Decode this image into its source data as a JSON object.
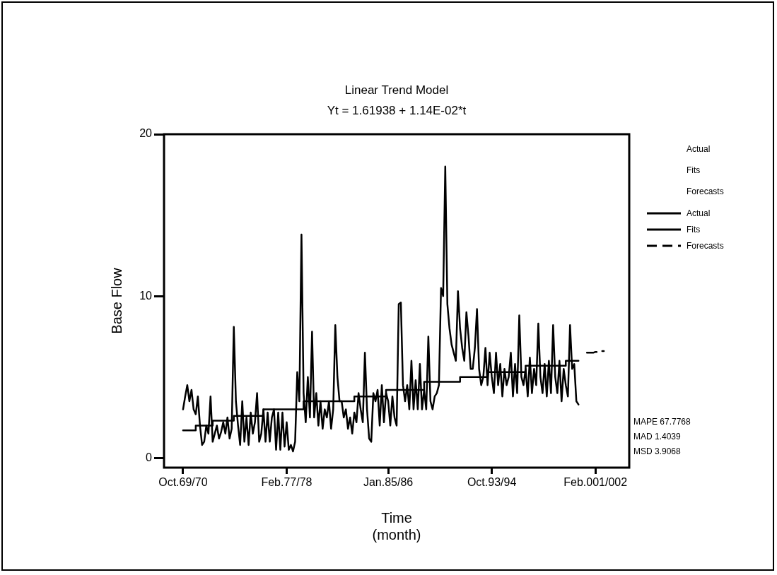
{
  "chart_data": {
    "type": "line",
    "title": "Linear Trend Model",
    "subtitle": "Yt = 1.61938 + 1.14E-02*t",
    "xlabel": "Time (month)",
    "ylabel": "Base Flow",
    "ylim": [
      -0.6,
      20
    ],
    "yticks": [
      0,
      10,
      20
    ],
    "grid": false,
    "legend": "right",
    "marker": "none",
    "legend_title": "Actual Fits Forecasts",
    "annotations": [
      "MAPE 67.7768",
      "MAD 1.4039",
      "MSD 3.9068"
    ],
    "categories": [
      null,
      null,
      null,
      null,
      null,
      null,
      null,
      null,
      null,
      "Oct.69/70",
      null,
      null,
      null,
      null,
      null,
      null,
      null,
      null,
      null,
      null,
      null,
      null,
      null,
      null,
      null,
      null,
      null,
      null,
      null,
      null,
      null,
      null,
      null,
      null,
      null,
      null,
      null,
      null,
      null,
      null,
      null,
      null,
      null,
      null,
      null,
      null,
      null,
      null,
      null,
      null,
      null,
      null,
      null,
      null,
      null,
      null,
      null,
      null,
      "Feb.77/78",
      null,
      null,
      null,
      null,
      null,
      null,
      null,
      null,
      null,
      null,
      null,
      null,
      null,
      null,
      null,
      null,
      null,
      null,
      null,
      null,
      null,
      null,
      null,
      null,
      null,
      null,
      null,
      null,
      null,
      null,
      null,
      null,
      null,
      null,
      null,
      null,
      null,
      null,
      null,
      null,
      null,
      null,
      null,
      null,
      null,
      null,
      null,
      "Jan.85/86",
      null,
      null,
      null,
      null,
      null,
      null,
      null,
      null,
      null,
      null,
      null,
      null,
      null,
      null,
      null,
      null,
      null,
      null,
      null,
      null,
      null,
      null,
      null,
      null,
      null,
      null,
      null,
      null,
      null,
      null,
      null,
      null,
      null,
      null,
      null,
      null,
      null,
      null,
      null,
      null,
      null,
      null,
      null,
      null,
      null,
      null,
      null,
      null,
      "Oct.93/94",
      null,
      null,
      null,
      null,
      null,
      null,
      null,
      null,
      null,
      null,
      null,
      null,
      null,
      null,
      null,
      null,
      null,
      null,
      null,
      null,
      null,
      null,
      null,
      null,
      null,
      null,
      null,
      null,
      null,
      null,
      null,
      null,
      null,
      null,
      null,
      null,
      null,
      null,
      null,
      null,
      null,
      null,
      null,
      null,
      null,
      null,
      null,
      null,
      "Feb.001/002",
      null,
      null,
      null,
      null,
      null,
      null,
      null,
      null,
      null,
      null,
      null,
      null,
      null,
      null,
      null,
      null
    ],
    "series": [
      {
        "name": "Actual",
        "color": "#000000",
        "line_style": "solid",
        "values": [
          null,
          null,
          null,
          null,
          null,
          null,
          null,
          null,
          null,
          3.0,
          3.8,
          4.5,
          3.5,
          4.2,
          3.0,
          2.7,
          3.8,
          2.0,
          0.8,
          1.0,
          2.0,
          1.5,
          3.8,
          1.0,
          1.5,
          2.0,
          1.2,
          1.6,
          2.2,
          1.5,
          2.5,
          1.2,
          1.8,
          8.1,
          3.5,
          2.0,
          0.8,
          3.5,
          1.0,
          2.5,
          0.8,
          2.8,
          1.5,
          2.2,
          4.0,
          1.0,
          1.5,
          3.0,
          1.0,
          2.8,
          1.0,
          2.5,
          3.0,
          0.5,
          2.8,
          0.5,
          2.8,
          0.7,
          2.2,
          0.5,
          0.8,
          0.4,
          1.0,
          5.3,
          3.5,
          13.8,
          4.0,
          2.2,
          5.0,
          2.5,
          7.8,
          2.5,
          4.0,
          2.0,
          3.5,
          1.8,
          3.0,
          2.5,
          3.5,
          1.8,
          3.0,
          8.2,
          5.0,
          3.5,
          3.5,
          2.5,
          3.0,
          1.8,
          2.5,
          1.5,
          2.8,
          2.2,
          4.0,
          3.0,
          2.2,
          6.5,
          3.0,
          1.2,
          1.0,
          4.0,
          3.5,
          4.2,
          2.0,
          4.5,
          2.2,
          4.0,
          3.5,
          2.0,
          3.8,
          2.5,
          2.0,
          9.5,
          9.6,
          4.5,
          3.5,
          4.5,
          3.0,
          6.0,
          3.0,
          4.8,
          3.0,
          5.8,
          3.0,
          4.2,
          3.0,
          7.5,
          3.5,
          3.0,
          3.8,
          4.0,
          4.5,
          10.5,
          10.0,
          18.0,
          9.5,
          8.0,
          7.0,
          6.5,
          6.0,
          10.3,
          8.0,
          6.8,
          6.0,
          9.0,
          7.5,
          5.5,
          5.5,
          6.8,
          9.2,
          5.5,
          4.5,
          5.0,
          6.8,
          4.5,
          6.5,
          5.0,
          4.0,
          6.5,
          4.5,
          5.8,
          3.8,
          5.5,
          4.5,
          5.0,
          6.5,
          3.8,
          5.8,
          4.0,
          8.8,
          5.0,
          4.5,
          5.5,
          3.8,
          6.2,
          4.0,
          5.5,
          4.5,
          8.3,
          5.0,
          4.0,
          5.8,
          3.8,
          6.0,
          4.0,
          8.2,
          5.0,
          4.0,
          6.0,
          3.5,
          5.5,
          4.5,
          3.8,
          8.2,
          5.5,
          5.8,
          3.5,
          3.3,
          null,
          null,
          null,
          null,
          null,
          null,
          null,
          null,
          null,
          null,
          null,
          null,
          null,
          null,
          null,
          null,
          null,
          null,
          null,
          null,
          null,
          null,
          null,
          null
        ]
      },
      {
        "name": "Fits",
        "type": "step",
        "color": "#000000",
        "line_style": "solid",
        "values": [
          null,
          null,
          null,
          null,
          null,
          null,
          null,
          null,
          null,
          1.7,
          1.7,
          1.7,
          1.7,
          1.7,
          1.7,
          2.0,
          2.0,
          2.0,
          2.0,
          2.0,
          2.0,
          2.0,
          2.0,
          2.3,
          2.3,
          2.3,
          2.3,
          2.3,
          2.3,
          2.3,
          2.3,
          2.3,
          2.3,
          2.6,
          2.6,
          2.6,
          2.6,
          2.6,
          2.6,
          2.6,
          2.6,
          2.6,
          2.6,
          2.6,
          2.6,
          2.6,
          2.6,
          3.0,
          3.0,
          3.0,
          3.0,
          3.0,
          3.0,
          3.0,
          3.0,
          3.0,
          3.0,
          3.0,
          3.0,
          3.0,
          3.0,
          3.0,
          3.0,
          3.0,
          3.0,
          3.0,
          3.5,
          3.5,
          3.5,
          3.5,
          3.5,
          3.5,
          3.5,
          3.5,
          3.5,
          3.5,
          3.5,
          3.5,
          3.5,
          3.5,
          3.5,
          3.5,
          3.5,
          3.5,
          3.5,
          3.5,
          3.5,
          3.5,
          3.5,
          3.5,
          3.8,
          3.8,
          3.8,
          3.8,
          3.8,
          3.8,
          3.8,
          3.8,
          3.8,
          3.8,
          3.8,
          3.8,
          3.8,
          3.8,
          3.8,
          4.2,
          4.2,
          4.2,
          4.2,
          4.2,
          4.2,
          4.2,
          4.2,
          4.2,
          4.2,
          4.2,
          4.2,
          4.2,
          4.2,
          4.2,
          4.2,
          4.2,
          4.2,
          4.7,
          4.7,
          4.7,
          4.7,
          4.7,
          4.7,
          4.7,
          4.7,
          4.7,
          4.7,
          4.7,
          4.7,
          4.7,
          4.7,
          4.7,
          4.7,
          4.7,
          5.0,
          5.0,
          5.0,
          5.0,
          5.0,
          5.0,
          5.0,
          5.0,
          5.0,
          5.0,
          5.0,
          5.0,
          5.0,
          5.3,
          5.3,
          5.3,
          5.3,
          5.3,
          5.3,
          5.3,
          5.3,
          5.3,
          5.3,
          5.3,
          5.3,
          5.3,
          5.3,
          5.3,
          5.3,
          5.3,
          5.3,
          5.7,
          5.7,
          5.7,
          5.7,
          5.7,
          5.7,
          5.7,
          5.7,
          5.7,
          5.7,
          5.7,
          5.7,
          5.7,
          5.7,
          5.7,
          5.7,
          5.7,
          5.7,
          5.7,
          6.0,
          6.0,
          6.0,
          6.0,
          6.0,
          6.0,
          6.0,
          null,
          null,
          null,
          null,
          null,
          null,
          null,
          null,
          null,
          null,
          null,
          null,
          null,
          null,
          null,
          null,
          null,
          null,
          null,
          null,
          null,
          null,
          null,
          null
        ]
      },
      {
        "name": "Forecasts",
        "color": "#000000",
        "line_style": "dashed",
        "values": [
          null,
          null,
          null,
          null,
          null,
          null,
          null,
          null,
          null,
          null,
          null,
          null,
          null,
          null,
          null,
          null,
          null,
          null,
          null,
          null,
          null,
          null,
          null,
          null,
          null,
          null,
          null,
          null,
          null,
          null,
          null,
          null,
          null,
          null,
          null,
          null,
          null,
          null,
          null,
          null,
          null,
          null,
          null,
          null,
          null,
          null,
          null,
          null,
          null,
          null,
          null,
          null,
          null,
          null,
          null,
          null,
          null,
          null,
          null,
          null,
          null,
          null,
          null,
          null,
          null,
          null,
          null,
          null,
          null,
          null,
          null,
          null,
          null,
          null,
          null,
          null,
          null,
          null,
          null,
          null,
          null,
          null,
          null,
          null,
          null,
          null,
          null,
          null,
          null,
          null,
          null,
          null,
          null,
          null,
          null,
          null,
          null,
          null,
          null,
          null,
          null,
          null,
          null,
          null,
          null,
          null,
          null,
          null,
          null,
          null,
          null,
          null,
          null,
          null,
          null,
          null,
          null,
          null,
          null,
          null,
          null,
          null,
          null,
          null,
          null,
          null,
          null,
          null,
          null,
          null,
          null,
          null,
          null,
          null,
          null,
          null,
          null,
          null,
          null,
          null,
          null,
          null,
          null,
          null,
          null,
          null,
          null,
          null,
          null,
          null,
          null,
          null,
          null,
          null,
          null,
          null,
          null,
          null,
          null,
          null,
          null,
          null,
          null,
          null,
          null,
          null,
          null,
          null,
          null,
          null,
          null,
          null,
          null,
          null,
          null,
          null,
          null,
          null,
          null,
          null,
          null,
          null,
          null,
          null,
          null,
          null,
          null,
          null,
          null,
          null,
          null,
          null,
          null,
          null,
          null,
          null,
          null,
          null,
          null,
          null,
          6.5,
          6.5,
          6.5,
          6.5,
          6.55,
          6.55,
          6.6,
          6.6,
          6.6,
          null,
          null,
          null,
          null,
          null,
          null,
          null,
          null,
          null,
          null,
          null,
          null
        ]
      }
    ]
  }
}
